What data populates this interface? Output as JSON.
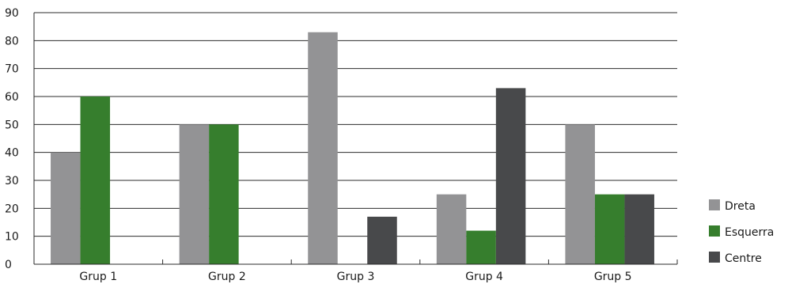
{
  "chart_data": {
    "type": "bar",
    "title": "",
    "xlabel": "",
    "ylabel": "",
    "categories": [
      "Grup 1",
      "Grup 2",
      "Grup 3",
      "Grup 4",
      "Grup 5"
    ],
    "series": [
      {
        "name": "Dreta",
        "color": "#939395",
        "values": [
          40,
          50,
          83,
          25,
          50
        ]
      },
      {
        "name": "Esquerra",
        "color": "#367e2d",
        "values": [
          60,
          50,
          0,
          12,
          25
        ]
      },
      {
        "name": "Centre",
        "color": "#48494b",
        "values": [
          0,
          0,
          17,
          63,
          25
        ]
      }
    ],
    "ylim": [
      0,
      90
    ],
    "yticks": [
      0,
      10,
      20,
      30,
      40,
      50,
      60,
      70,
      80,
      90
    ],
    "grid": true,
    "legend_position": "right"
  }
}
